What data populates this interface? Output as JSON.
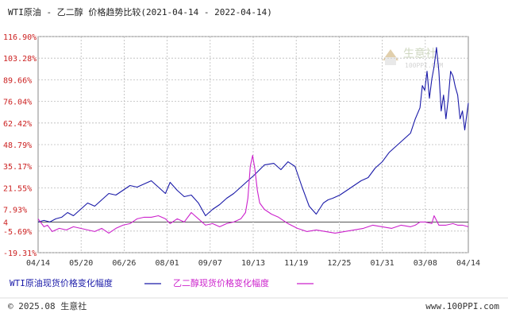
{
  "chart_data": {
    "type": "line",
    "title": "WTI原油 - 乙二醇 价格趋势比较(2021-04-14 - 2022-04-14)",
    "watermark": {
      "name": "生意社",
      "domain": "100PPI.COM"
    },
    "y_ticks": [
      "116.90%",
      "103.28%",
      "89.66%",
      "76.04%",
      "62.42%",
      "48.79%",
      "35.17%",
      "21.55%",
      "7.93%",
      "-5.69%",
      "-19.31%"
    ],
    "y_values": [
      116.9,
      103.28,
      89.66,
      76.04,
      62.42,
      48.79,
      35.17,
      21.55,
      7.93,
      -5.69,
      -19.31
    ],
    "zero_label": "4",
    "ylim": [
      -19.31,
      116.9
    ],
    "x_ticks": [
      "04/14",
      "05/20",
      "06/26",
      "08/01",
      "09/07",
      "10/13",
      "11/19",
      "12/25",
      "01/31",
      "03/08",
      "04/14"
    ],
    "xlim": [
      0,
      365
    ],
    "grid": true,
    "legend_position": "bottom-left",
    "colors": {
      "wti": "#1a1aa8",
      "meg": "#cc22cc",
      "tick_red": "#cc2222",
      "grid": "#bbbbbb"
    },
    "series": [
      {
        "name": "WTI原油现货价格变化幅度",
        "color": "#1a1aa8",
        "x": [
          0,
          5,
          10,
          15,
          20,
          25,
          30,
          36,
          42,
          48,
          54,
          60,
          66,
          72,
          78,
          84,
          90,
          96,
          102,
          108,
          112,
          118,
          124,
          130,
          136,
          142,
          148,
          154,
          160,
          166,
          172,
          178,
          184,
          192,
          200,
          206,
          212,
          218,
          224,
          230,
          236,
          242,
          246,
          250,
          256,
          262,
          268,
          274,
          280,
          286,
          292,
          298,
          304,
          310,
          316,
          320,
          324,
          326,
          328,
          330,
          332,
          334,
          336,
          338,
          340,
          342,
          344,
          346,
          348,
          350,
          352,
          354,
          356,
          358,
          360,
          362,
          365
        ],
        "y": [
          0,
          1,
          0,
          2,
          3,
          6,
          4,
          8,
          12,
          10,
          14,
          18,
          17,
          20,
          23,
          22,
          24,
          26,
          22,
          18,
          25,
          20,
          16,
          17,
          12,
          4,
          8,
          11,
          15,
          18,
          22,
          26,
          30,
          36,
          37,
          33,
          38,
          35,
          22,
          10,
          5,
          12,
          14,
          15,
          17,
          20,
          23,
          26,
          28,
          34,
          38,
          44,
          48,
          52,
          56,
          65,
          72,
          86,
          83,
          95,
          78,
          90,
          98,
          110,
          95,
          70,
          80,
          65,
          78,
          95,
          92,
          85,
          80,
          65,
          70,
          58,
          75
        ]
      },
      {
        "name": "乙二醇现货价格变化幅度",
        "color": "#cc22cc",
        "x": [
          0,
          5,
          8,
          12,
          18,
          24,
          30,
          36,
          42,
          48,
          54,
          60,
          66,
          72,
          78,
          84,
          90,
          96,
          102,
          108,
          112,
          118,
          124,
          130,
          136,
          142,
          148,
          154,
          160,
          166,
          172,
          176,
          178,
          180,
          182,
          184,
          186,
          188,
          192,
          198,
          204,
          212,
          220,
          228,
          236,
          244,
          252,
          260,
          268,
          276,
          284,
          292,
          300,
          308,
          316,
          320,
          324,
          328,
          334,
          336,
          338,
          340,
          346,
          352,
          356,
          360,
          365
        ],
        "y": [
          2,
          -3,
          -2,
          -6,
          -4,
          -5,
          -3,
          -4,
          -5,
          -6,
          -4,
          -7,
          -4,
          -2,
          -1,
          2,
          3,
          3,
          4,
          2,
          -1,
          2,
          0,
          6,
          2,
          -2,
          -1,
          -3,
          -1,
          0,
          2,
          6,
          15,
          35,
          42,
          33,
          20,
          12,
          8,
          5,
          3,
          -1,
          -4,
          -6,
          -5,
          -6,
          -7,
          -6,
          -5,
          -4,
          -2,
          -3,
          -4,
          -2,
          -3,
          -2,
          0,
          0,
          -1,
          4,
          1,
          -2,
          -2,
          -1,
          -2,
          -2,
          -3
        ]
      }
    ]
  },
  "footer": {
    "copyright": "© 2025.08 生意社",
    "site": "www.100PPI.com"
  }
}
